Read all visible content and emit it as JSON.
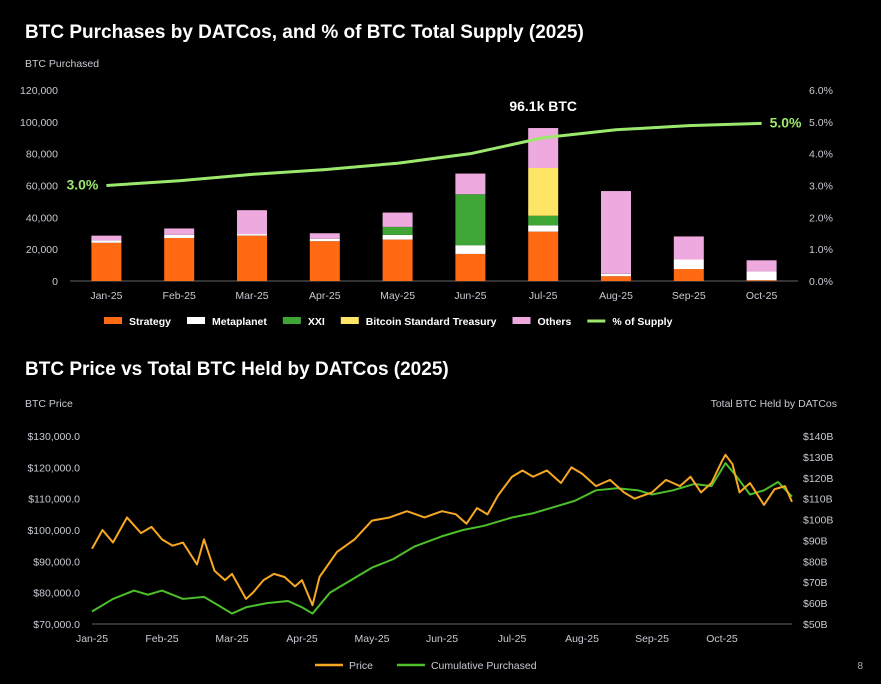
{
  "page_number": "8",
  "chart_data": [
    {
      "type": "bar",
      "stacked": true,
      "title": "BTC Purchases by DATCos, and % of BTC Total Supply (2025)",
      "ylabel": "BTC Purchased",
      "ylim": [
        0,
        120000
      ],
      "yticks": [
        "0",
        "20,000",
        "40,000",
        "60,000",
        "80,000",
        "100,000",
        "120,000"
      ],
      "y2lim": [
        0,
        6
      ],
      "y2ticks": [
        "0.0%",
        "1.0%",
        "2.0%",
        "3.0%",
        "4.0%",
        "5.0%",
        "6.0%"
      ],
      "categories": [
        "Jan-25",
        "Feb-25",
        "Mar-25",
        "Apr-25",
        "May-25",
        "Jun-25",
        "Jul-25",
        "Aug-25",
        "Sep-25",
        "Oct-25"
      ],
      "series": [
        {
          "name": "Strategy",
          "color": "#ff6a13",
          "values": [
            24000,
            27000,
            28500,
            25000,
            26000,
            17000,
            31000,
            3000,
            7500,
            500
          ]
        },
        {
          "name": "Metaplanet",
          "color": "#ffffff",
          "values": [
            1500,
            2000,
            1000,
            1500,
            3000,
            5500,
            4000,
            1500,
            6000,
            5500
          ]
        },
        {
          "name": "XXI",
          "color": "#3fa535",
          "values": [
            0,
            0,
            0,
            0,
            5000,
            32000,
            6000,
            0,
            0,
            0
          ]
        },
        {
          "name": "Bitcoin Standard Treasury",
          "color": "#ffe566",
          "values": [
            0,
            0,
            0,
            0,
            0,
            0,
            30000,
            0,
            0,
            0
          ]
        },
        {
          "name": "Others",
          "color": "#eeaadf",
          "values": [
            3000,
            4000,
            15000,
            3500,
            9000,
            13000,
            25100,
            52000,
            14500,
            7000
          ]
        }
      ],
      "line": {
        "name": "% of Supply",
        "color": "#9be86c",
        "values": [
          3.0,
          3.15,
          3.35,
          3.5,
          3.7,
          4.0,
          4.5,
          4.75,
          4.88,
          4.95
        ]
      },
      "annotations": {
        "peak": "96.1k BTC",
        "start_pct": "3.0%",
        "end_pct": "5.0%"
      }
    },
    {
      "type": "line",
      "title": "BTC Price vs Total BTC Held by DATCos (2025)",
      "ylabel": "BTC Price",
      "y2label": "Total BTC Held by DATCos",
      "ylim": [
        70000,
        130000
      ],
      "yticks": [
        "$70,000.0",
        "$80,000.0",
        "$90,000.0",
        "$100,000.0",
        "$110,000.0",
        "$120,000.0",
        "$130,000.0"
      ],
      "y2lim": [
        50,
        140
      ],
      "y2ticks": [
        "$50B",
        "$60B",
        "$70B",
        "$80B",
        "$90B",
        "$100B",
        "$110B",
        "$120B",
        "$130B",
        "$140B"
      ],
      "xticks": [
        "Jan-25",
        "Feb-25",
        "Mar-25",
        "Apr-25",
        "May-25",
        "Jun-25",
        "Jul-25",
        "Aug-25",
        "Sep-25",
        "Oct-25"
      ],
      "x_start_month": 0,
      "x_end_month": 10,
      "series": [
        {
          "name": "Price",
          "axis": "left",
          "color": "#f7a823",
          "x": [
            0,
            0.15,
            0.3,
            0.5,
            0.7,
            0.85,
            1.0,
            1.15,
            1.3,
            1.5,
            1.6,
            1.75,
            1.9,
            2.0,
            2.1,
            2.2,
            2.3,
            2.45,
            2.6,
            2.75,
            2.9,
            3.0,
            3.15,
            3.25,
            3.5,
            3.75,
            4.0,
            4.25,
            4.5,
            4.75,
            5.0,
            5.2,
            5.35,
            5.5,
            5.65,
            5.8,
            6.0,
            6.15,
            6.3,
            6.5,
            6.7,
            6.85,
            7.0,
            7.2,
            7.4,
            7.6,
            7.75,
            8.0,
            8.2,
            8.4,
            8.55,
            8.7,
            8.85,
            9.0,
            9.05,
            9.15,
            9.25,
            9.4,
            9.6,
            9.75,
            9.9,
            10.0
          ],
          "values": [
            94000,
            100000,
            96000,
            104000,
            99000,
            101000,
            97000,
            95000,
            96000,
            89000,
            97000,
            87000,
            84000,
            86000,
            82000,
            78000,
            80000,
            84000,
            86000,
            85000,
            82000,
            84000,
            76000,
            85000,
            93000,
            97000,
            103000,
            104000,
            106000,
            104000,
            106000,
            105000,
            102000,
            107000,
            105000,
            111000,
            117000,
            119000,
            117000,
            119000,
            115000,
            120000,
            118000,
            114000,
            116000,
            112000,
            110000,
            112000,
            116000,
            114000,
            117000,
            112000,
            115000,
            122000,
            124000,
            121000,
            112000,
            115000,
            108000,
            113000,
            114000,
            109000
          ]
        },
        {
          "name": "Cumulative Purchased",
          "axis": "right",
          "color": "#4cbf2a",
          "x": [
            0,
            0.3,
            0.6,
            0.8,
            1.0,
            1.3,
            1.6,
            1.85,
            2.0,
            2.2,
            2.5,
            2.8,
            3.0,
            3.15,
            3.4,
            3.7,
            4.0,
            4.3,
            4.6,
            5.0,
            5.3,
            5.6,
            6.0,
            6.3,
            6.6,
            6.9,
            7.2,
            7.5,
            7.8,
            8.0,
            8.3,
            8.6,
            8.85,
            9.05,
            9.2,
            9.4,
            9.6,
            9.8,
            10.0
          ],
          "values": [
            56,
            62,
            66,
            64,
            66,
            62,
            63,
            58,
            55,
            58,
            60,
            61,
            58,
            55,
            65,
            71,
            77,
            81,
            87,
            92,
            95,
            97,
            101,
            103,
            106,
            109,
            114,
            115,
            114,
            112,
            114,
            117,
            116,
            127,
            121,
            112,
            114,
            118,
            111
          ]
        }
      ]
    }
  ]
}
